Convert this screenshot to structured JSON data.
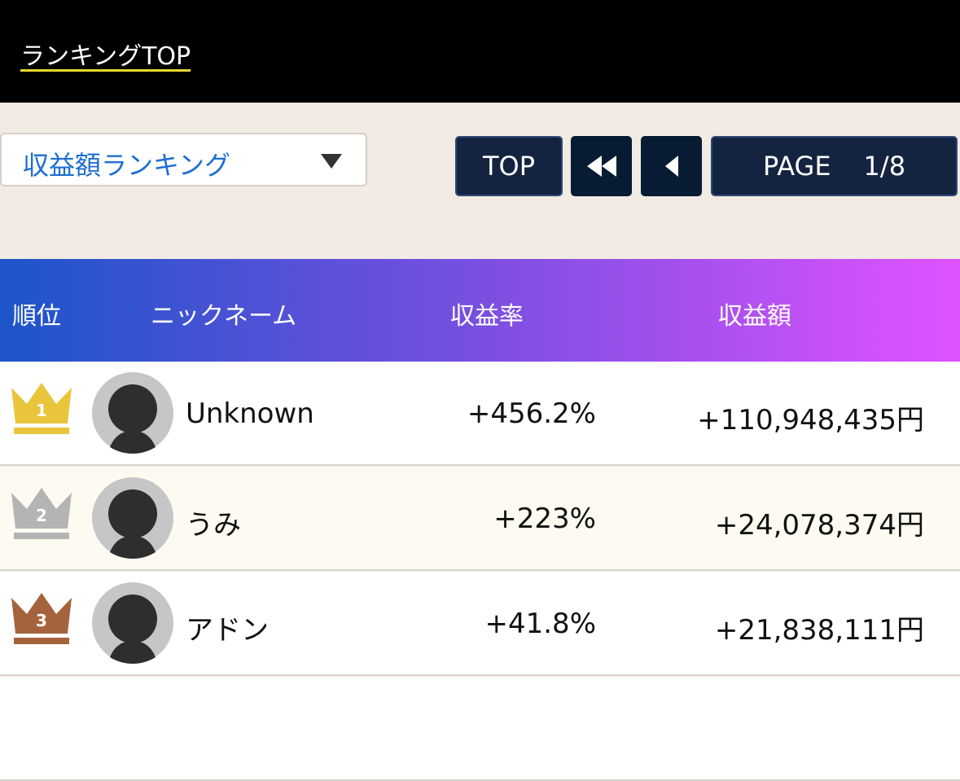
{
  "header": {
    "link": "ランキングTOP"
  },
  "controls": {
    "dropdown": "収益額ランキング",
    "top_button": "TOP",
    "page_label": "PAGE",
    "page_value": "1/8"
  },
  "table": {
    "columns": [
      "順位",
      "ニックネーム",
      "収益率",
      "収益額"
    ],
    "rows": [
      {
        "rank": "1",
        "name": "Unknown",
        "rate": "+456.2%",
        "amount": "+110,948,435円"
      },
      {
        "rank": "2",
        "name": "うみ",
        "rate": "+223%",
        "amount": "+24,078,374円"
      },
      {
        "rank": "3",
        "name": "アドン",
        "rate": "+41.8%",
        "amount": "+21,838,111円"
      }
    ]
  }
}
